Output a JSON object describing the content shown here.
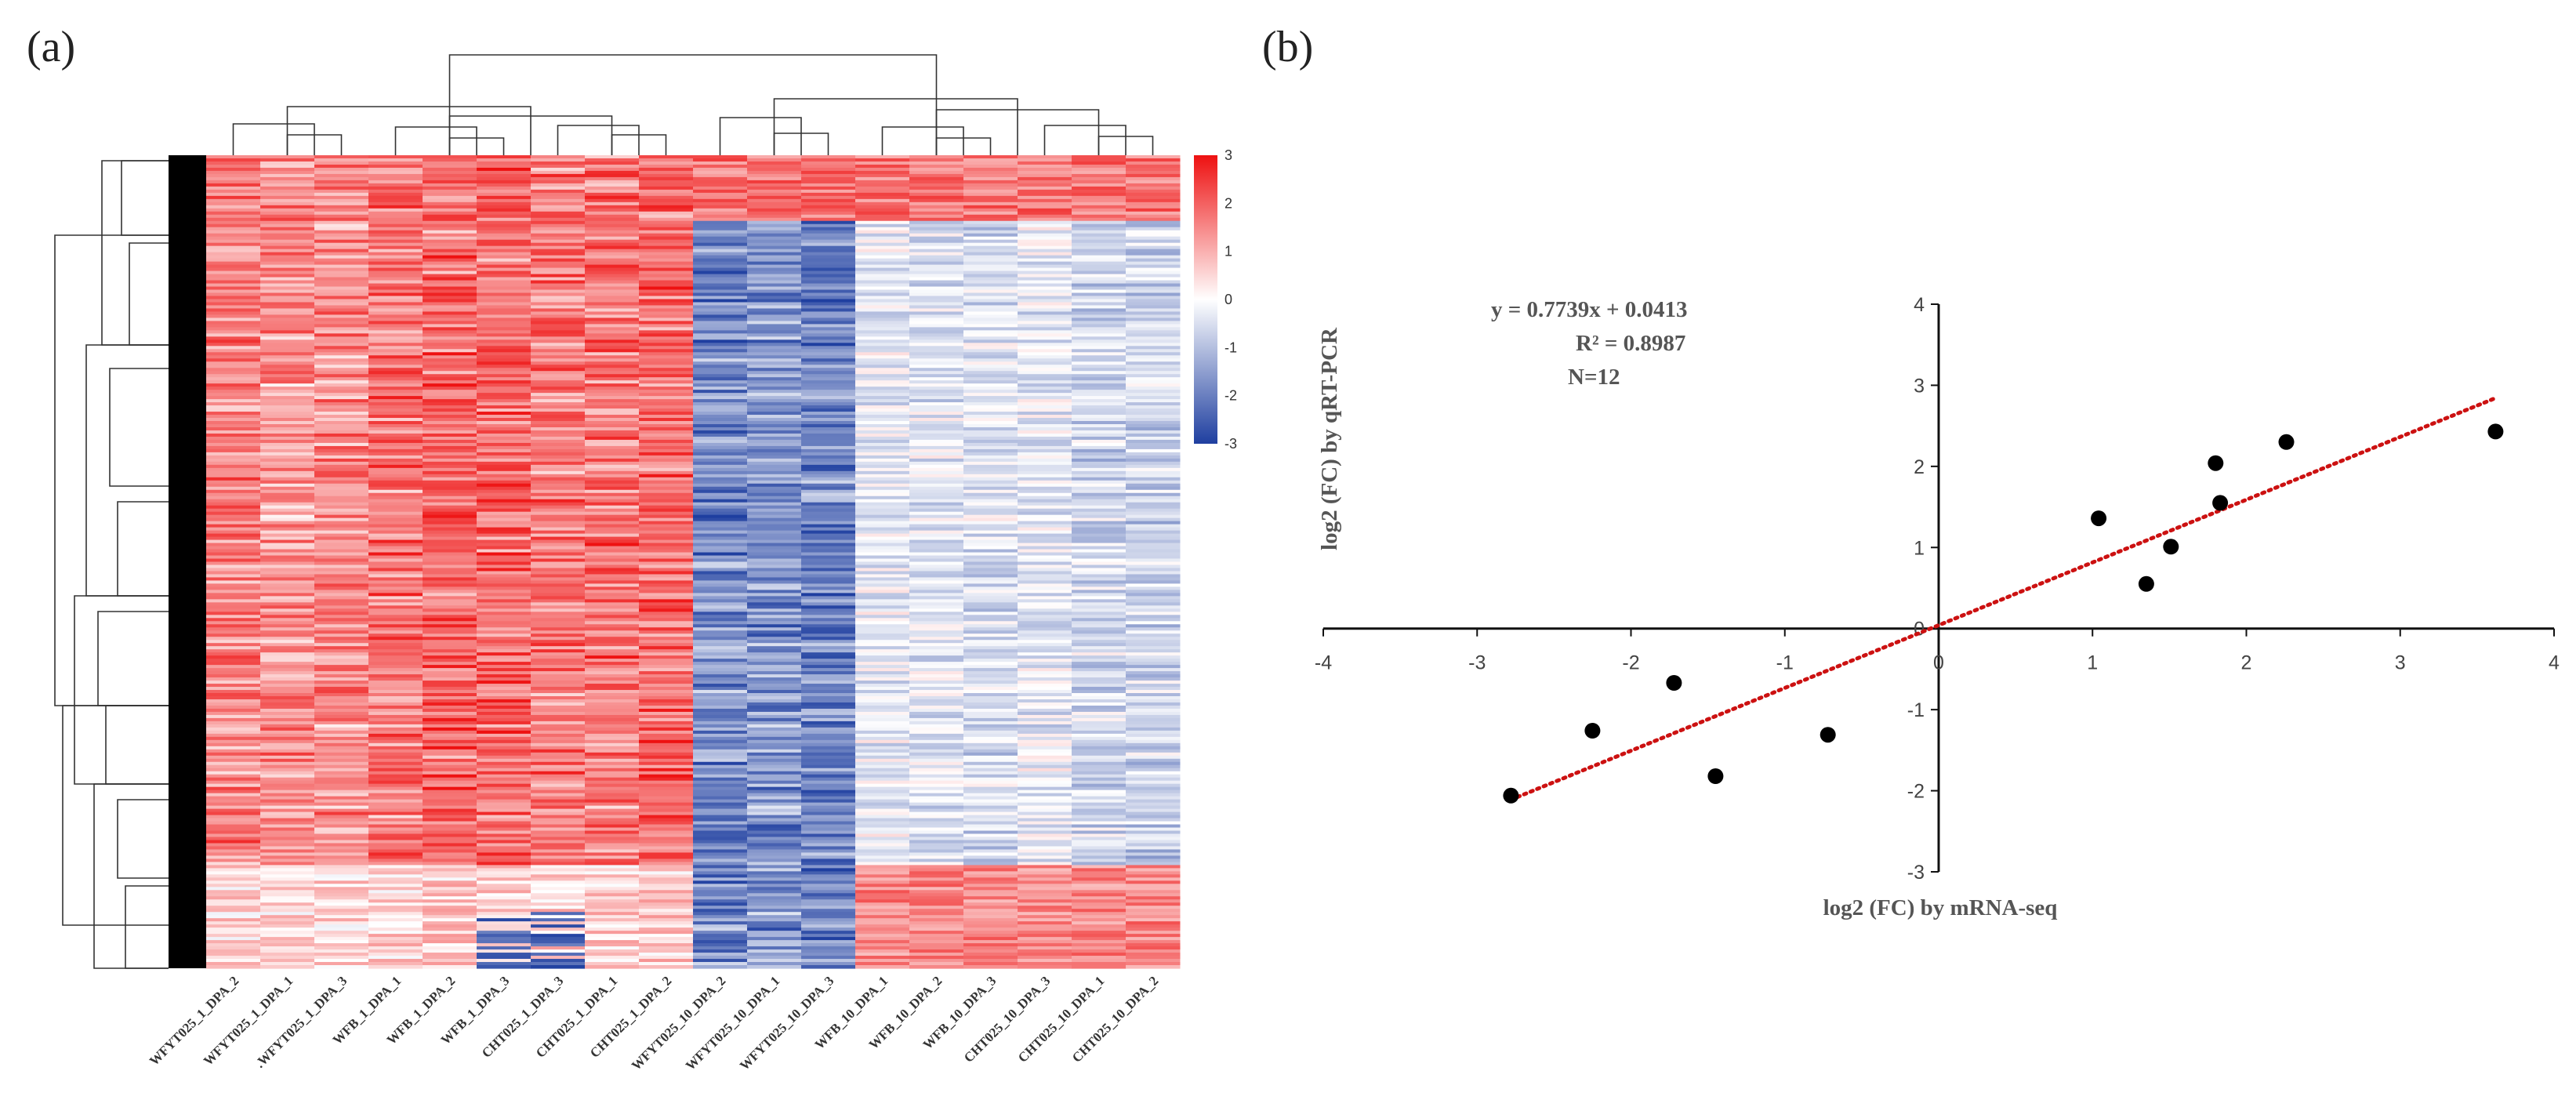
{
  "panel_a_label": "(a)",
  "panel_b_label": "(b)",
  "chart_data": [
    {
      "type": "heatmap",
      "panel": "(a)",
      "title": "",
      "columns": [
        "WFYT025_1_DPA_2",
        "WFYT025_1_DPA_1",
        ".WFYT025_1_DPA_3",
        "WFB_1_DPA_1",
        "WFB_1_DPA_2",
        "WFB_1_DPA_3",
        "CHT025_1_DPA_3",
        "CHT025_1_DPA_1",
        "CHT025_1_DPA_2",
        "WFYT025_10_DPA_2",
        "WFYT025_10_DPA_1",
        "WFYT025_10_DPA_3",
        "WFB_10_DPA_1",
        "WFB_10_DPA_2",
        "WFB_10_DPA_3",
        "CHT025_10_DPA_3",
        "CHT025_10_DPA_1",
        "CHT025_10_DPA_2"
      ],
      "column_mean_zscore": [
        1.7,
        1.5,
        1.6,
        1.9,
        2.0,
        2.1,
        1.8,
        1.9,
        2.0,
        -2.0,
        -1.8,
        -2.1,
        -0.3,
        -0.5,
        -0.6,
        -0.4,
        -0.7,
        -0.8
      ],
      "colorbar": {
        "ticks": [
          3,
          2,
          1,
          0,
          -1,
          -2,
          -3
        ],
        "labels": [
          "3",
          "2",
          "1",
          "0",
          "-1",
          "-2",
          "-3"
        ],
        "low": "#1f3fa0",
        "mid": "#ffffff",
        "high": "#ee1111"
      },
      "rows_dendrogram": true,
      "columns_dendrogram": true
    },
    {
      "type": "scatter",
      "panel": "(b)",
      "xlabel": "log2 (FC) by mRNA-seq",
      "ylabel": "log2 (FC) by qRT-PCR",
      "xlim": [
        -4,
        4
      ],
      "ylim": [
        -3,
        4
      ],
      "xticks": [
        -4,
        -3,
        -2,
        -1,
        0,
        1,
        2,
        3,
        4
      ],
      "yticks": [
        -3,
        -2,
        -1,
        0,
        1,
        2,
        3,
        4
      ],
      "x": [
        -2.78,
        -2.25,
        -1.72,
        -1.45,
        -0.72,
        1.04,
        1.35,
        1.51,
        1.8,
        1.83,
        2.26,
        3.62
      ],
      "y": [
        -2.06,
        -1.26,
        -0.67,
        -1.82,
        -1.31,
        1.36,
        0.55,
        1.01,
        2.04,
        1.55,
        2.3,
        2.43
      ],
      "trendline": {
        "slope": 0.7739,
        "intercept": 0.0413,
        "x_range": [
          -2.78,
          3.62
        ],
        "color": "#cc1111",
        "style": "dotted"
      },
      "annotations": {
        "equation": "y = 0.7739x + 0.0413",
        "r2": "R² = 0.8987",
        "n": "N=12"
      }
    }
  ]
}
